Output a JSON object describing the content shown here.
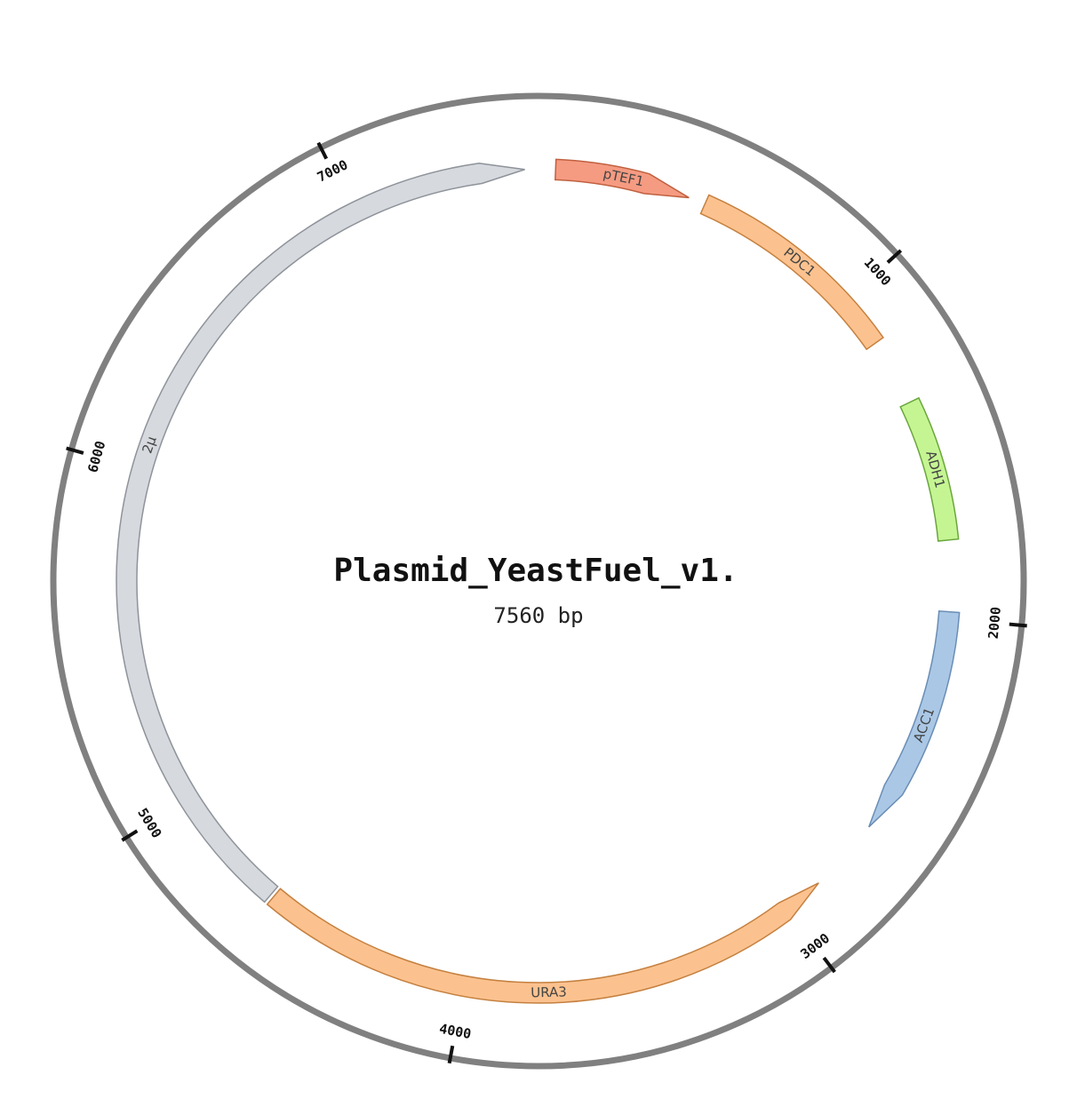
{
  "plasmid": {
    "name": "Plasmid_YeastFuel_v1.",
    "length_label": "7560 bp",
    "length_bp": 7560
  },
  "ticks": [
    {
      "bp": 1000,
      "label": "1000"
    },
    {
      "bp": 2000,
      "label": "2000"
    },
    {
      "bp": 3000,
      "label": "3000"
    },
    {
      "bp": 4000,
      "label": "4000"
    },
    {
      "bp": 5000,
      "label": "5000"
    },
    {
      "bp": 6000,
      "label": "6000"
    },
    {
      "bp": 7000,
      "label": "7000"
    }
  ],
  "features": [
    {
      "name": "pTEF1",
      "start": 50,
      "end": 450,
      "strand": 1,
      "fill": "#f59b82",
      "stroke": "#c0603f"
    },
    {
      "name": "PDC1",
      "start": 500,
      "end": 1150,
      "strand": 0,
      "fill": "#fbc28f",
      "stroke": "#c5803f"
    },
    {
      "name": "ADH1",
      "start": 1350,
      "end": 1770,
      "strand": 0,
      "fill": "#c5f593",
      "stroke": "#6aa63c"
    },
    {
      "name": "ACC1",
      "start": 1980,
      "end": 2660,
      "strand": 1,
      "fill": "#aac8e6",
      "stroke": "#6a8db5"
    },
    {
      "name": "URA3",
      "start": 2880,
      "end": 4620,
      "strand": -1,
      "fill": "#fbc28f",
      "stroke": "#c5803f"
    },
    {
      "name": "2μ",
      "start": 4630,
      "end": 7520,
      "strand": 1,
      "fill": "#d6d9de",
      "stroke": "#8e939a"
    }
  ]
}
